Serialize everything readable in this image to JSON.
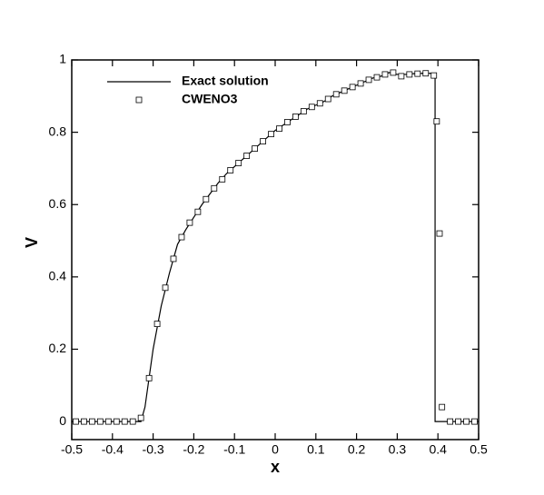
{
  "chart_data": {
    "type": "line",
    "xlabel": "x",
    "ylabel": "V",
    "xlim": [
      -0.5,
      0.5
    ],
    "ylim": [
      -0.05,
      1
    ],
    "xticks": [
      -0.5,
      -0.4,
      -0.3,
      -0.2,
      -0.1,
      0,
      0.1,
      0.2,
      0.3,
      0.4,
      0.5
    ],
    "yticks": [
      0,
      0.2,
      0.4,
      0.6,
      0.8,
      1
    ],
    "grid": false,
    "legend": "upper left",
    "series": [
      {
        "name": "Exact solution",
        "color": "#000000",
        "style": "line",
        "x": [
          -0.5,
          -0.33,
          -0.32,
          -0.3,
          -0.28,
          -0.26,
          -0.24,
          -0.22,
          -0.2,
          -0.18,
          -0.16,
          -0.14,
          -0.12,
          -0.1,
          -0.08,
          -0.06,
          -0.04,
          -0.02,
          0,
          0.02,
          0.04,
          0.06,
          0.08,
          0.1,
          0.12,
          0.14,
          0.16,
          0.18,
          0.2,
          0.22,
          0.24,
          0.26,
          0.28,
          0.3,
          0.32,
          0.34,
          0.36,
          0.38,
          0.393,
          0.393,
          0.5
        ],
        "values": [
          0,
          0,
          0.04,
          0.2,
          0.32,
          0.41,
          0.49,
          0.53,
          0.565,
          0.6,
          0.63,
          0.66,
          0.685,
          0.705,
          0.725,
          0.745,
          0.765,
          0.785,
          0.805,
          0.82,
          0.835,
          0.85,
          0.865,
          0.875,
          0.885,
          0.9,
          0.91,
          0.92,
          0.93,
          0.94,
          0.95,
          0.955,
          0.965,
          0.96,
          0.96,
          0.962,
          0.963,
          0.963,
          0.963,
          0,
          0
        ]
      },
      {
        "name": "CWENO3",
        "color": "#000000",
        "style": "marker",
        "x": [
          -0.49,
          -0.47,
          -0.45,
          -0.43,
          -0.41,
          -0.39,
          -0.37,
          -0.35,
          -0.33,
          -0.31,
          -0.29,
          -0.27,
          -0.25,
          -0.23,
          -0.21,
          -0.19,
          -0.17,
          -0.15,
          -0.13,
          -0.11,
          -0.09,
          -0.07,
          -0.05,
          -0.03,
          -0.01,
          0.01,
          0.03,
          0.05,
          0.07,
          0.09,
          0.11,
          0.13,
          0.15,
          0.17,
          0.19,
          0.21,
          0.23,
          0.25,
          0.27,
          0.29,
          0.31,
          0.33,
          0.35,
          0.37,
          0.39,
          0.397,
          0.404,
          0.41,
          0.43,
          0.45,
          0.47,
          0.49
        ],
        "values": [
          0,
          0,
          0,
          0,
          0,
          0,
          0,
          0,
          0.01,
          0.12,
          0.27,
          0.37,
          0.45,
          0.51,
          0.55,
          0.58,
          0.615,
          0.645,
          0.67,
          0.695,
          0.715,
          0.735,
          0.755,
          0.775,
          0.795,
          0.81,
          0.828,
          0.843,
          0.858,
          0.87,
          0.88,
          0.892,
          0.905,
          0.915,
          0.925,
          0.935,
          0.945,
          0.952,
          0.96,
          0.965,
          0.955,
          0.96,
          0.962,
          0.963,
          0.957,
          0.83,
          0.52,
          0.04,
          0,
          0,
          0,
          0
        ]
      }
    ]
  }
}
